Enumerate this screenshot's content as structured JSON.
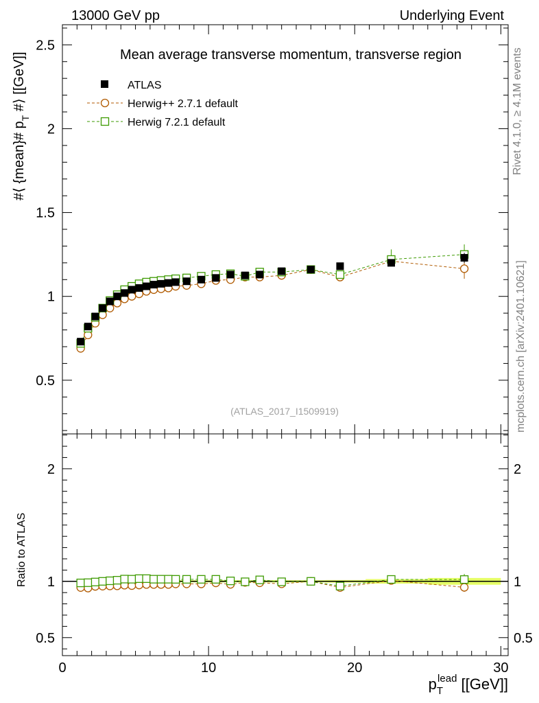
{
  "header": {
    "left": "13000 GeV pp",
    "right": "Underlying Event"
  },
  "side_text": {
    "rivet": "Rivet 4.1.0, ≥ 4.1M events",
    "site": "mcplots.cern.ch [arXiv:2401.10621]"
  },
  "analysis_id": "(ATLAS_2017_I1509919)",
  "colors": {
    "atlas": "#000000",
    "herwig_pp": "#b05a00",
    "herwig7": "#3d9a00",
    "band": "#e5ff66"
  },
  "chart_data": [
    {
      "type": "scatter",
      "panel": "main",
      "title": "Mean average transverse momentum, transverse region",
      "ylabel": "#⟨ {mean}# p_T #⟩ [[GeV]]",
      "ylabel_parts": {
        "a": "#⟨ {mean}# p",
        "sub": "T",
        "b": " #⟩ [[GeV]]"
      },
      "xlim": [
        0,
        30.5
      ],
      "ylim": [
        0.18,
        2.62
      ],
      "yticks": [
        "0.5",
        "1",
        "1.5",
        "2",
        "2.5"
      ],
      "xticks": [
        "0",
        "10",
        "20",
        "30"
      ],
      "x": [
        1.25,
        1.75,
        2.25,
        2.75,
        3.25,
        3.75,
        4.25,
        4.75,
        5.25,
        5.75,
        6.25,
        6.75,
        7.25,
        7.75,
        8.5,
        9.5,
        10.5,
        11.5,
        12.5,
        13.5,
        15.0,
        17.0,
        19.0,
        22.5,
        27.5
      ],
      "legend": [
        "ATLAS",
        "Herwig++ 2.7.1 default",
        "Herwig 7.2.1 default"
      ],
      "series": [
        {
          "name": "ATLAS",
          "marker": "filled-square",
          "values": [
            0.73,
            0.82,
            0.88,
            0.93,
            0.97,
            1.0,
            1.02,
            1.04,
            1.05,
            1.06,
            1.07,
            1.075,
            1.08,
            1.085,
            1.09,
            1.1,
            1.11,
            1.13,
            1.125,
            1.13,
            1.15,
            1.16,
            1.18,
            1.2,
            1.23
          ],
          "errors": [
            0.01,
            0.01,
            0.01,
            0.01,
            0.01,
            0.01,
            0.01,
            0.01,
            0.01,
            0.01,
            0.01,
            0.01,
            0.01,
            0.01,
            0.01,
            0.01,
            0.01,
            0.01,
            0.01,
            0.01,
            0.01,
            0.01,
            0.01,
            0.02,
            0.03
          ]
        },
        {
          "name": "Herwig++ 2.7.1 default",
          "marker": "open-circle",
          "values": [
            0.69,
            0.77,
            0.84,
            0.89,
            0.93,
            0.96,
            0.985,
            1.0,
            1.015,
            1.03,
            1.04,
            1.045,
            1.05,
            1.06,
            1.065,
            1.075,
            1.095,
            1.1,
            1.115,
            1.115,
            1.125,
            1.16,
            1.115,
            1.21,
            1.165
          ],
          "errors": [
            0.005,
            0.005,
            0.005,
            0.005,
            0.005,
            0.005,
            0.005,
            0.005,
            0.005,
            0.005,
            0.005,
            0.005,
            0.005,
            0.005,
            0.005,
            0.005,
            0.008,
            0.008,
            0.01,
            0.01,
            0.01,
            0.015,
            0.02,
            0.03,
            0.06
          ]
        },
        {
          "name": "Herwig 7.2.1 default",
          "marker": "open-square",
          "values": [
            0.72,
            0.81,
            0.875,
            0.93,
            0.975,
            1.01,
            1.04,
            1.06,
            1.075,
            1.085,
            1.09,
            1.095,
            1.1,
            1.105,
            1.11,
            1.12,
            1.13,
            1.135,
            1.12,
            1.145,
            1.145,
            1.16,
            1.13,
            1.22,
            1.25
          ]
        }
      ]
    },
    {
      "type": "scatter",
      "panel": "ratio",
      "ylabel": "Ratio to ATLAS",
      "xlabel": "p_T^lead [[GeV]]",
      "xlabel_parts": {
        "p": "p",
        "sub": "T",
        "sup": "lead",
        "unit": " [[GeV]]"
      },
      "xlim": [
        0,
        30.5
      ],
      "ylim": [
        0.34,
        2.31
      ],
      "yticks": [
        "0.5",
        "1",
        "2"
      ],
      "xticks": [
        "0",
        "10",
        "20",
        "30"
      ],
      "x": [
        1.25,
        1.75,
        2.25,
        2.75,
        3.25,
        3.75,
        4.25,
        4.75,
        5.25,
        5.75,
        6.25,
        6.75,
        7.25,
        7.75,
        8.5,
        9.5,
        10.5,
        11.5,
        12.5,
        13.5,
        15.0,
        17.0,
        19.0,
        22.5,
        27.5
      ],
      "band_halfwidth": [
        0.014,
        0.012,
        0.011,
        0.011,
        0.01,
        0.01,
        0.01,
        0.01,
        0.01,
        0.01,
        0.01,
        0.01,
        0.01,
        0.01,
        0.01,
        0.01,
        0.01,
        0.01,
        0.01,
        0.01,
        0.01,
        0.01,
        0.012,
        0.02,
        0.03
      ],
      "series": [
        {
          "name": "Herwig++ 2.7.1 default",
          "marker": "open-circle",
          "values": [
            0.945,
            0.94,
            0.955,
            0.957,
            0.959,
            0.96,
            0.966,
            0.962,
            0.967,
            0.972,
            0.972,
            0.972,
            0.972,
            0.977,
            0.977,
            0.977,
            0.986,
            0.973,
            0.991,
            0.987,
            0.978,
            1.0,
            0.945,
            1.008,
            0.947
          ]
        },
        {
          "name": "Herwig 7.2.1 default",
          "marker": "open-square",
          "values": [
            0.986,
            0.988,
            0.994,
            1.0,
            1.005,
            1.01,
            1.02,
            1.019,
            1.024,
            1.024,
            1.019,
            1.019,
            1.019,
            1.018,
            1.018,
            1.018,
            1.018,
            1.004,
            0.996,
            1.013,
            0.996,
            1.0,
            0.958,
            1.017,
            1.016
          ]
        }
      ]
    }
  ]
}
